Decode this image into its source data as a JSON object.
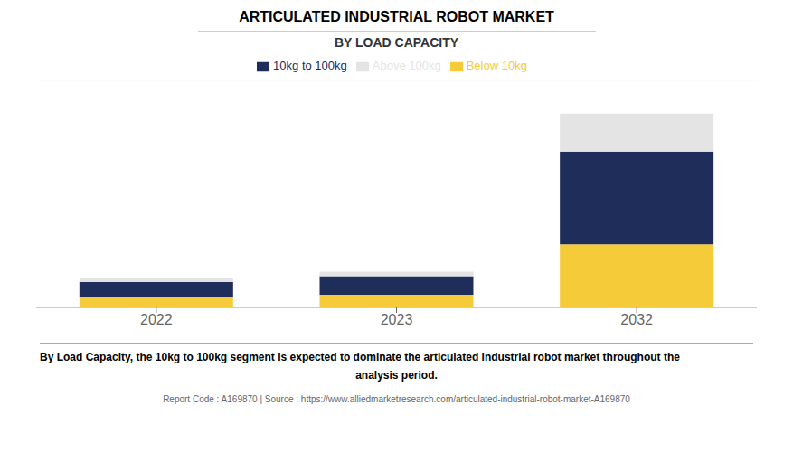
{
  "chart_data": {
    "type": "bar",
    "title": "ARTICULATED INDUSTRIAL ROBOT MARKET",
    "subtitle": "BY LOAD CAPACITY",
    "categories": [
      "2022",
      "2023",
      "2032"
    ],
    "series": [
      {
        "name": "Below 10kg",
        "color": "#F5CB3A",
        "values": [
          1.2,
          1.5,
          7.5
        ]
      },
      {
        "name": "10kg to 100kg",
        "color": "#1E2D5A",
        "values": [
          1.8,
          2.2,
          11.0
        ]
      },
      {
        "name": "Above 100kg",
        "color": "#E4E4E4",
        "values": [
          0.45,
          0.55,
          4.5
        ]
      }
    ],
    "stacked": true,
    "ylim": [
      0,
      27
    ],
    "tick_labels": "x",
    "grid": false,
    "legend": "top",
    "annotations": [
      "By Load Capacity, the 10kg to 100kg segment is expected to dominate the articulated industrial robot market throughout the",
      "analysis period.",
      "Report Code : A169870  |  Source : https://www.alliedmarketresearch.com/articulated-industrial-robot-market-A169870"
    ]
  }
}
